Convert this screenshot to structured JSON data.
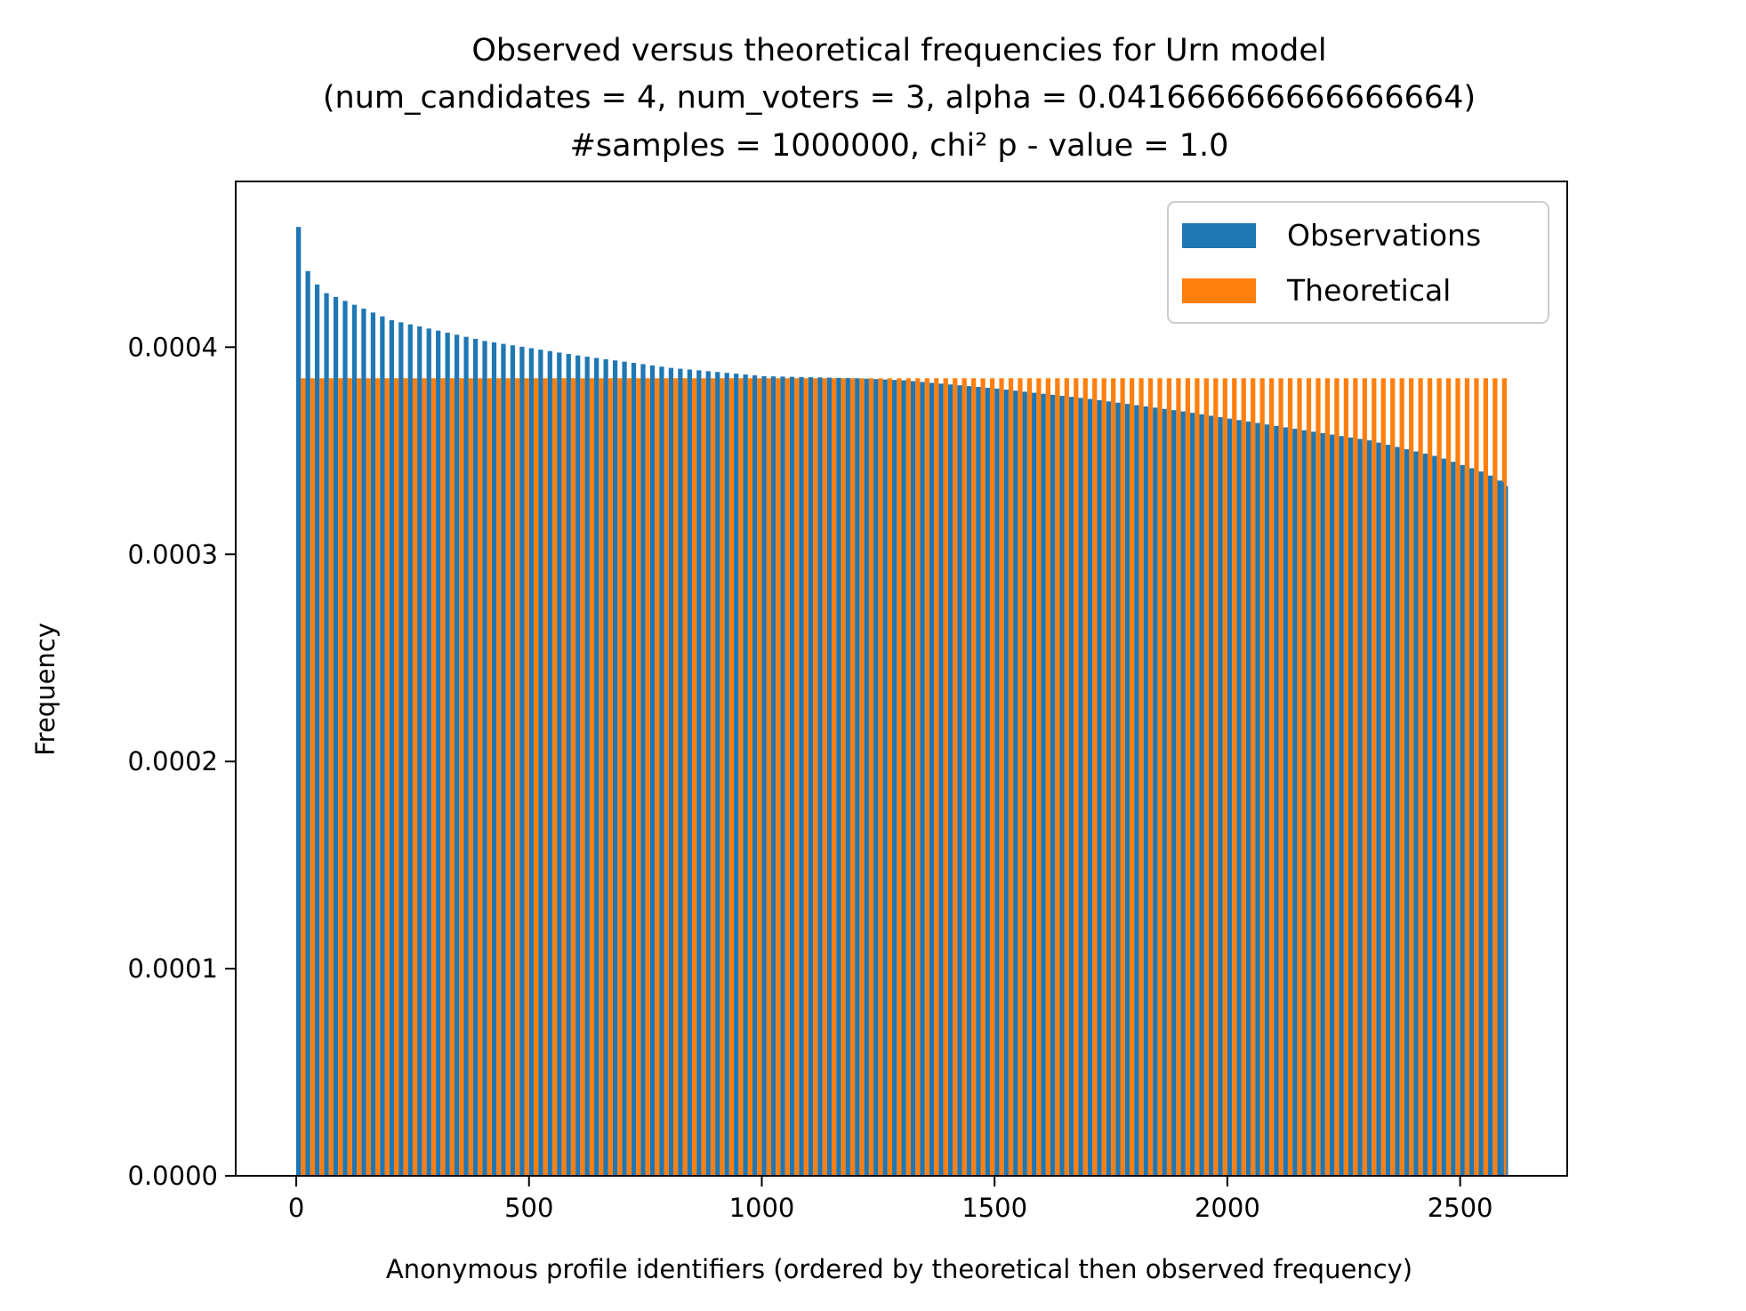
{
  "chart_data": {
    "type": "bar",
    "title_lines": [
      "Observed versus theoretical frequencies for Urn model",
      "(num_candidates = 4, num_voters = 3, alpha = 0.041666666666666664)",
      "#samples = 1000000, chi² p - value = 1.0"
    ],
    "xlabel": "Anonymous profile identifiers (ordered by theoretical then observed frequency)",
    "ylabel": "Frequency",
    "xlim": [
      -130,
      2730
    ],
    "ylim": [
      0,
      0.00048
    ],
    "xticks": [
      0,
      500,
      1000,
      1500,
      2000,
      2500
    ],
    "xtick_labels": [
      "0",
      "500",
      "1000",
      "1500",
      "2000",
      "2500"
    ],
    "yticks": [
      0,
      0.0001,
      0.0002,
      0.0003,
      0.0004
    ],
    "ytick_labels": [
      "0.0000",
      "0.0001",
      "0.0002",
      "0.0003",
      "0.0004"
    ],
    "num_profiles": 2600,
    "bar_step": 20,
    "bar_width": 10,
    "theoretical_offset": 10,
    "legend_position": "upper right",
    "series": [
      {
        "name": "Observations",
        "color": "#1f77b4",
        "shape": "sorted decreasing",
        "points": [
          [
            0,
            0.000458
          ],
          [
            3,
            0.000449
          ],
          [
            10,
            0.00044
          ],
          [
            50,
            0.000427
          ],
          [
            200,
            0.000413
          ],
          [
            400,
            0.000403
          ],
          [
            600,
            0.000396
          ],
          [
            800,
            0.00039
          ],
          [
            1000,
            0.000386
          ],
          [
            1200,
            0.000385
          ],
          [
            1300,
            0.000384
          ],
          [
            1500,
            0.00038
          ],
          [
            1700,
            0.000375
          ],
          [
            1900,
            0.000369
          ],
          [
            2100,
            0.000362
          ],
          [
            2300,
            0.000355
          ],
          [
            2450,
            0.000347
          ],
          [
            2540,
            0.00034
          ],
          [
            2570,
            0.000337
          ],
          [
            2599,
            0.000333
          ]
        ]
      },
      {
        "name": "Theoretical",
        "color": "#ff7f0e",
        "value": 0.000385
      }
    ]
  }
}
